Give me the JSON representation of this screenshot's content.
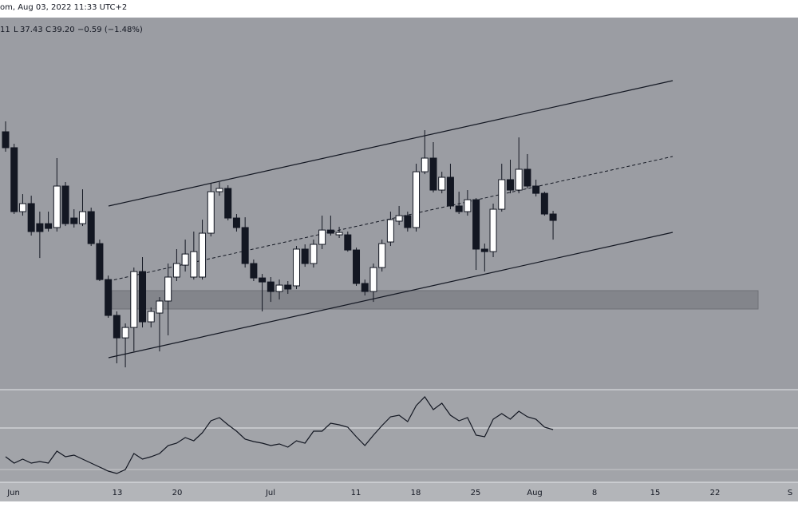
{
  "header": {
    "title": "om, Aug 03, 2022 11:33 UTC+2",
    "ohlc_line": {
      "high_fragment": "11",
      "low_label": "L",
      "low": "37.43",
      "close_label": "C",
      "close": "39.20",
      "change": "−0.59 (−1.48%)"
    }
  },
  "chart_data": {
    "type": "candlestick",
    "ylim": [
      23.8,
      57.92
    ],
    "up_color": "#ffffff",
    "down_color": "#131722",
    "ohlc": [
      [
        47.38,
        48.34,
        45.54,
        45.91
      ],
      [
        45.91,
        46.27,
        39.79,
        40.01
      ],
      [
        40.01,
        41.63,
        39.64,
        40.75
      ],
      [
        40.75,
        41.48,
        37.8,
        38.17
      ],
      [
        38.9,
        40.01,
        35.73,
        38.17
      ],
      [
        38.9,
        40.01,
        38.17,
        38.46
      ],
      [
        38.54,
        44.95,
        38.17,
        42.37
      ],
      [
        42.37,
        42.74,
        38.68,
        38.9
      ],
      [
        39.42,
        40.23,
        38.54,
        38.9
      ],
      [
        38.9,
        42.07,
        38.68,
        40.01
      ],
      [
        40.01,
        40.38,
        36.84,
        37.06
      ],
      [
        37.06,
        37.43,
        33.6,
        33.74
      ],
      [
        33.74,
        34.11,
        30.21,
        30.43
      ],
      [
        30.43,
        30.8,
        26.01,
        28.36
      ],
      [
        28.36,
        29.69,
        25.64,
        29.32
      ],
      [
        29.32,
        34.85,
        27.11,
        34.48
      ],
      [
        34.48,
        35.81,
        29.32,
        29.84
      ],
      [
        29.84,
        31.17,
        29.32,
        30.8
      ],
      [
        30.65,
        32.12,
        27.11,
        31.76
      ],
      [
        31.76,
        35.22,
        28.59,
        33.97
      ],
      [
        33.97,
        36.55,
        33.6,
        35.22
      ],
      [
        35.07,
        37.43,
        34.48,
        36.1
      ],
      [
        33.97,
        38.17,
        33.74,
        36.32
      ],
      [
        33.97,
        39.27,
        33.74,
        38.02
      ],
      [
        38.02,
        42.59,
        37.72,
        41.85
      ],
      [
        41.85,
        42.74,
        41.48,
        42.15
      ],
      [
        42.15,
        42.44,
        39.2,
        39.42
      ],
      [
        39.42,
        39.79,
        38.17,
        38.54
      ],
      [
        38.54,
        39.49,
        34.85,
        35.22
      ],
      [
        35.22,
        35.59,
        33.6,
        33.89
      ],
      [
        33.89,
        34.26,
        30.8,
        33.52
      ],
      [
        33.52,
        33.97,
        31.68,
        32.64
      ],
      [
        32.64,
        33.74,
        31.9,
        33.23
      ],
      [
        33.23,
        33.6,
        32.42,
        32.86
      ],
      [
        33.16,
        36.84,
        32.86,
        36.55
      ],
      [
        36.55,
        36.99,
        34.92,
        35.22
      ],
      [
        35.22,
        37.43,
        34.85,
        36.99
      ],
      [
        36.99,
        39.64,
        36.55,
        38.31
      ],
      [
        38.31,
        39.64,
        37.8,
        38.02
      ],
      [
        37.87,
        38.61,
        37.58,
        38.09
      ],
      [
        37.87,
        38.17,
        36.32,
        36.47
      ],
      [
        36.47,
        36.69,
        33.16,
        33.38
      ],
      [
        33.38,
        33.74,
        32.27,
        32.64
      ],
      [
        32.64,
        35.22,
        31.68,
        34.85
      ],
      [
        34.85,
        37.43,
        34.48,
        37.06
      ],
      [
        37.21,
        40.01,
        36.84,
        39.27
      ],
      [
        39.13,
        40.53,
        38.76,
        39.64
      ],
      [
        39.64,
        40.01,
        38.17,
        38.54
      ],
      [
        38.54,
        44.43,
        38.17,
        43.69
      ],
      [
        43.69,
        47.53,
        43.47,
        44.95
      ],
      [
        44.95,
        46.42,
        41.78,
        42.0
      ],
      [
        42.0,
        43.69,
        41.7,
        43.18
      ],
      [
        43.18,
        44.43,
        40.23,
        40.53
      ],
      [
        40.53,
        41.85,
        39.79,
        40.01
      ],
      [
        40.01,
        42.0,
        39.64,
        41.11
      ],
      [
        41.11,
        41.26,
        34.63,
        36.55
      ],
      [
        36.55,
        37.06,
        34.48,
        36.32
      ],
      [
        36.32,
        40.75,
        35.81,
        40.23
      ],
      [
        40.23,
        44.43,
        40.01,
        42.96
      ],
      [
        42.96,
        44.8,
        41.7,
        42.0
      ],
      [
        42.0,
        46.86,
        41.7,
        43.92
      ],
      [
        43.92,
        45.32,
        42.15,
        42.37
      ],
      [
        42.37,
        42.96,
        41.41,
        41.7
      ],
      [
        41.7,
        41.85,
        39.64,
        39.79
      ],
      [
        39.79,
        40.08,
        37.43,
        39.2
      ]
    ],
    "rsi": {
      "ylim": [
        23.6,
        70
      ],
      "color": "#131722",
      "values": [
        36.4,
        33.2,
        35.2,
        33.2,
        34,
        33.2,
        39.2,
        36.4,
        37.2,
        35.2,
        33.2,
        31.2,
        29.2,
        28,
        30,
        38,
        35.2,
        36.4,
        38,
        42,
        43.2,
        46,
        44.4,
        48.4,
        54.4,
        56,
        52.4,
        49.2,
        45.2,
        44,
        43.2,
        42,
        42.8,
        41.2,
        44.4,
        43.2,
        49.2,
        49.2,
        53.2,
        52.4,
        51.2,
        46.4,
        42,
        47.2,
        52,
        56.4,
        57.2,
        54,
        62,
        66.4,
        60,
        63.2,
        57.2,
        54.4,
        56,
        47.2,
        46.4,
        55.2,
        58,
        55.2,
        59.2,
        56.4,
        55.2,
        51.2,
        50
      ]
    },
    "x_labels": [
      "Jun",
      "13",
      "20",
      "Jul",
      "11",
      "18",
      "25",
      "Aug",
      "8",
      "15",
      "22",
      "S"
    ]
  }
}
